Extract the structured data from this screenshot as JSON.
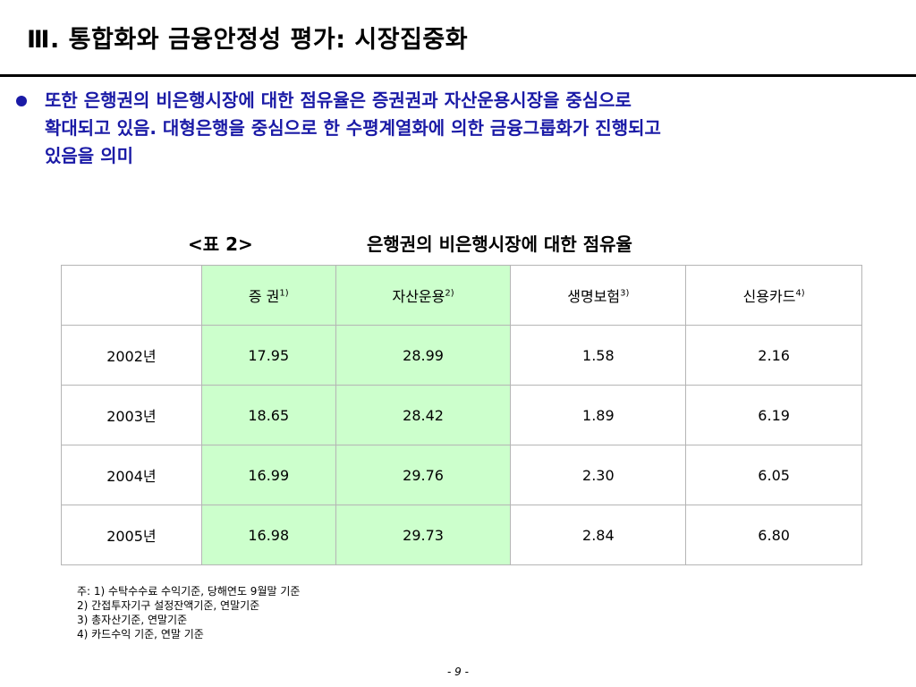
{
  "title": "Ⅲ. 통합화와 금융안정성 평가: 시장집중화",
  "bullet": {
    "color": "#1a1aa6",
    "text": "또한 은행권의 비은행시장에 대한 점유율은 증권권과 자산운용시장을 중심으로\n확대되고 있음. 대형은행을 중심으로 한 수평계열화에 의한 금융그룹화가 진행되고\n있음을 의미"
  },
  "table_caption": {
    "label": "<표 2>",
    "title": "은행권의 비은행시장에 대한 점유율"
  },
  "table": {
    "highlight_color": "#ccffcc",
    "headers": [
      {
        "label": "",
        "sup": ""
      },
      {
        "label": "증  권",
        "sup": "1)"
      },
      {
        "label": "자산운용",
        "sup": "2)"
      },
      {
        "label": "생명보험",
        "sup": "3)"
      },
      {
        "label": "신용카드",
        "sup": "4)"
      }
    ],
    "rows": [
      {
        "year": "2002년",
        "values": [
          "17.95",
          "28.99",
          "1.58",
          "2.16"
        ]
      },
      {
        "year": "2003년",
        "values": [
          "18.65",
          "28.42",
          "1.89",
          "6.19"
        ]
      },
      {
        "year": "2004년",
        "values": [
          "16.99",
          "29.76",
          "2.30",
          "6.05"
        ]
      },
      {
        "year": "2005년",
        "values": [
          "16.98",
          "29.73",
          "2.84",
          "6.80"
        ]
      }
    ]
  },
  "notes": [
    "주: 1) 수탁수수료 수익기준, 당해연도 9월말 기준",
    "2) 간접투자기구 설정잔액기준, 연말기준",
    "3) 총자산기준, 연말기준",
    "4) 카드수익 기준, 연말 기준"
  ],
  "page_number": "- 9 -"
}
